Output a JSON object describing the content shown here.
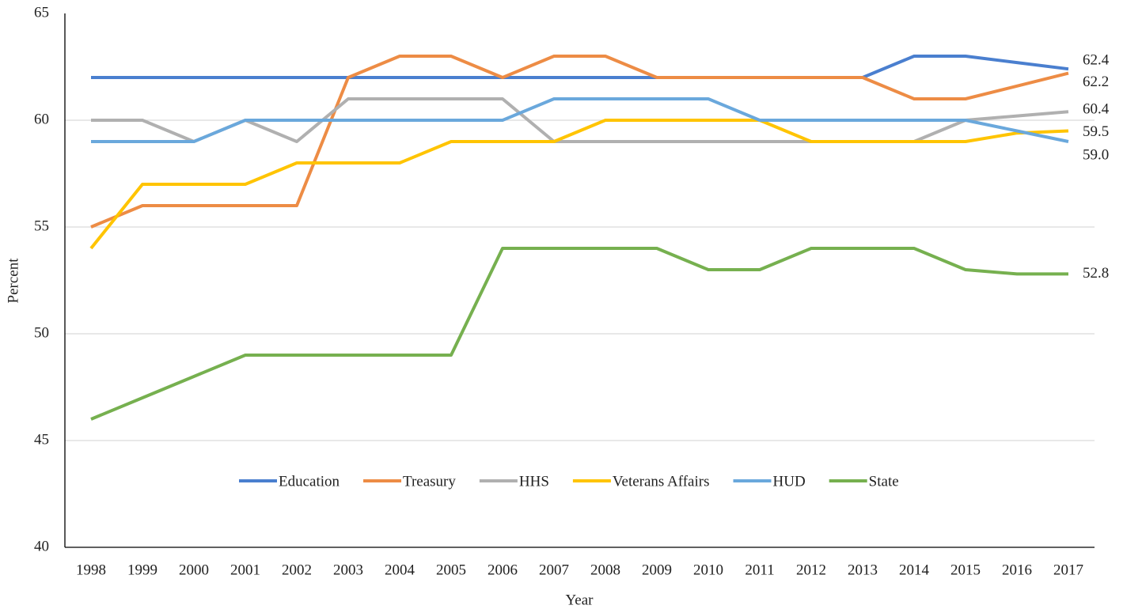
{
  "chart_data": {
    "type": "line",
    "x_label": "Year",
    "y_label": "Percent",
    "categories": [
      "1998",
      "1999",
      "2000",
      "2001",
      "2002",
      "2003",
      "2004",
      "2005",
      "2006",
      "2007",
      "2008",
      "2009",
      "2010",
      "2011",
      "2012",
      "2013",
      "2014",
      "2015",
      "2016",
      "2017"
    ],
    "ylim": [
      40,
      65
    ],
    "yticks": [
      40,
      45,
      50,
      55,
      60,
      65
    ],
    "grid": true,
    "legend": "bottom",
    "series": [
      {
        "name": "Education",
        "color": "#4a7fcf",
        "values": [
          62,
          62,
          62,
          62,
          62,
          62,
          62,
          62,
          62,
          62,
          62,
          62,
          62,
          62,
          62,
          62,
          63,
          63,
          62.7,
          62.4
        ],
        "value_labels": [
          null,
          null,
          null,
          null,
          null,
          null,
          null,
          null,
          null,
          null,
          null,
          null,
          null,
          null,
          null,
          null,
          null,
          null,
          null,
          "62.4"
        ]
      },
      {
        "name": "Treasury",
        "color": "#ed8c45",
        "values": [
          55,
          56,
          56,
          56,
          56,
          62,
          63,
          63,
          62,
          63,
          63,
          62,
          62,
          62,
          62,
          62,
          61,
          61,
          61.6,
          62.2
        ],
        "value_labels": [
          null,
          null,
          null,
          null,
          null,
          null,
          null,
          null,
          null,
          null,
          null,
          null,
          null,
          null,
          null,
          null,
          null,
          null,
          null,
          "62.2"
        ]
      },
      {
        "name": "HHS",
        "color": "#b0b0b0",
        "values": [
          60,
          60,
          59,
          60,
          59,
          61,
          61,
          61,
          61,
          59,
          59,
          59,
          59,
          59,
          59,
          59,
          59,
          60,
          60.2,
          60.4
        ],
        "value_labels": [
          null,
          null,
          null,
          null,
          null,
          null,
          null,
          null,
          null,
          null,
          null,
          null,
          null,
          null,
          null,
          null,
          null,
          null,
          null,
          "60.4"
        ]
      },
      {
        "name": "Veterans Affairs",
        "color": "#ffc400",
        "values": [
          54,
          57,
          57,
          57,
          58,
          58,
          58,
          59,
          59,
          59,
          60,
          60,
          60,
          60,
          59,
          59,
          59,
          59,
          59.4,
          59.5
        ],
        "value_labels": [
          null,
          null,
          null,
          null,
          null,
          null,
          null,
          null,
          null,
          null,
          null,
          null,
          null,
          null,
          null,
          null,
          null,
          null,
          null,
          "59.5"
        ]
      },
      {
        "name": "HUD",
        "color": "#6aa8dc",
        "values": [
          59,
          59,
          59,
          60,
          60,
          60,
          60,
          60,
          60,
          61,
          61,
          61,
          61,
          60,
          60,
          60,
          60,
          60,
          59.5,
          59.0
        ],
        "value_labels": [
          null,
          null,
          null,
          null,
          null,
          null,
          null,
          null,
          null,
          null,
          null,
          null,
          null,
          null,
          null,
          null,
          null,
          null,
          null,
          "59.0"
        ]
      },
      {
        "name": "State",
        "color": "#76b04f",
        "values": [
          46,
          47,
          48,
          49,
          49,
          49,
          49,
          49,
          54,
          54,
          54,
          54,
          53,
          53,
          54,
          54,
          54,
          53,
          52.8,
          52.8
        ],
        "value_labels": [
          null,
          null,
          null,
          null,
          null,
          null,
          null,
          null,
          null,
          null,
          null,
          null,
          null,
          null,
          null,
          null,
          null,
          null,
          null,
          "52.8"
        ]
      }
    ]
  }
}
